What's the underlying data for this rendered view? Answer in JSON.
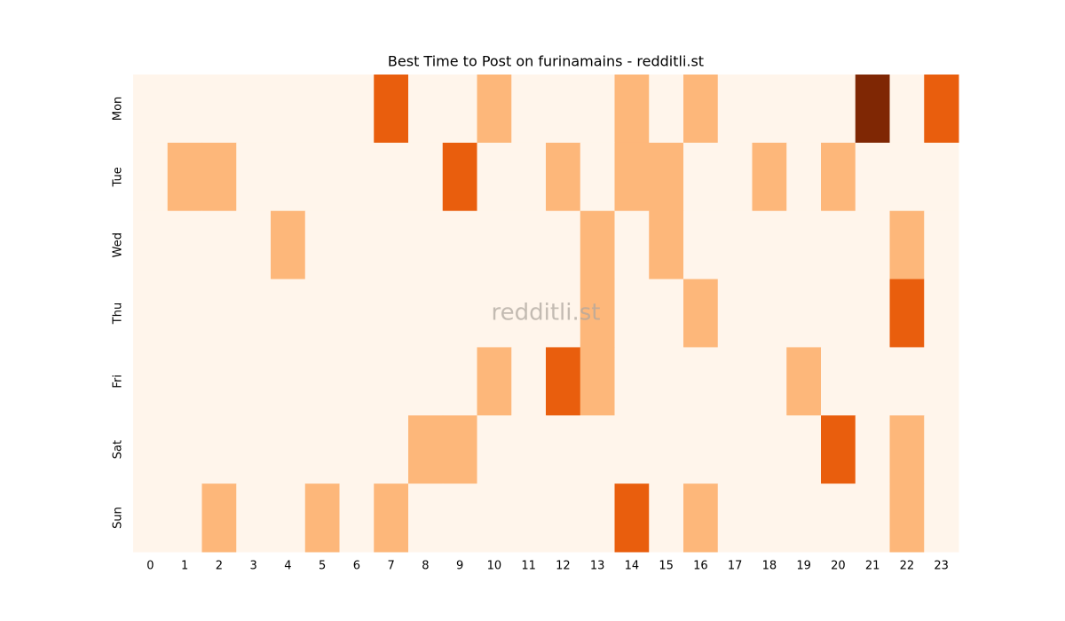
{
  "chart_data": {
    "type": "heatmap",
    "title": "Best Time to Post on furinamains - redditli.st",
    "watermark": "redditli.st",
    "x_categories": [
      "0",
      "1",
      "2",
      "3",
      "4",
      "5",
      "6",
      "7",
      "8",
      "9",
      "10",
      "11",
      "12",
      "13",
      "14",
      "15",
      "16",
      "17",
      "18",
      "19",
      "20",
      "21",
      "22",
      "23"
    ],
    "y_categories": [
      "Mon",
      "Tue",
      "Wed",
      "Thu",
      "Fri",
      "Sat",
      "Sun"
    ],
    "values": [
      [
        0,
        0,
        0,
        0,
        0,
        0,
        0,
        2,
        0,
        0,
        1,
        0,
        0,
        0,
        1,
        0,
        1,
        0,
        0,
        0,
        0,
        3,
        0,
        2
      ],
      [
        0,
        1,
        1,
        0,
        0,
        0,
        0,
        0,
        0,
        2,
        0,
        0,
        1,
        0,
        1,
        1,
        0,
        0,
        1,
        0,
        1,
        0,
        0,
        0
      ],
      [
        0,
        0,
        0,
        0,
        1,
        0,
        0,
        0,
        0,
        0,
        0,
        0,
        0,
        1,
        0,
        1,
        0,
        0,
        0,
        0,
        0,
        0,
        1,
        0
      ],
      [
        0,
        0,
        0,
        0,
        0,
        0,
        0,
        0,
        0,
        0,
        0,
        0,
        0,
        1,
        0,
        0,
        1,
        0,
        0,
        0,
        0,
        0,
        2,
        0
      ],
      [
        0,
        0,
        0,
        0,
        0,
        0,
        0,
        0,
        0,
        0,
        1,
        0,
        2,
        1,
        0,
        0,
        0,
        0,
        0,
        1,
        0,
        0,
        0,
        0
      ],
      [
        0,
        0,
        0,
        0,
        0,
        0,
        0,
        0,
        1,
        1,
        0,
        0,
        0,
        0,
        0,
        0,
        0,
        0,
        0,
        0,
        2,
        0,
        1,
        0
      ],
      [
        0,
        0,
        1,
        0,
        0,
        1,
        0,
        1,
        0,
        0,
        0,
        0,
        0,
        0,
        2,
        0,
        1,
        0,
        0,
        0,
        0,
        0,
        1,
        0
      ]
    ],
    "color_scale": [
      "#fff5eb",
      "#fdb77a",
      "#e95e0d",
      "#7f2704"
    ]
  }
}
